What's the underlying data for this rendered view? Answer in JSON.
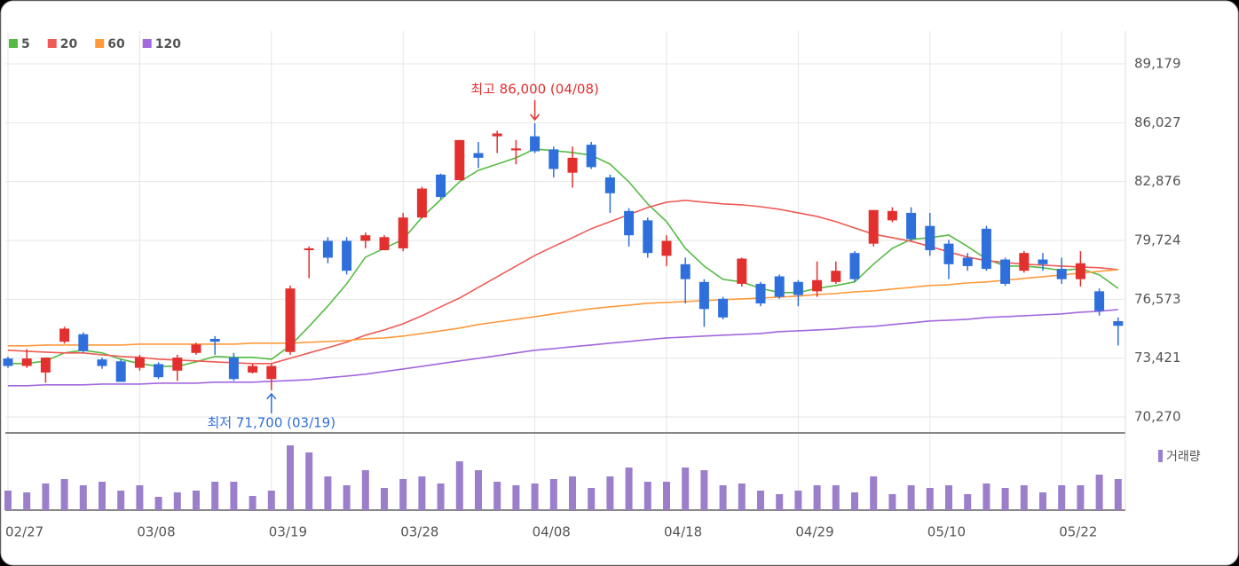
{
  "chart_data": [
    {
      "type": "candlestick",
      "categories": [
        "02/27",
        null,
        null,
        null,
        null,
        null,
        null,
        "03/08",
        null,
        null,
        null,
        null,
        null,
        null,
        "03/19",
        null,
        null,
        null,
        null,
        null,
        null,
        "03/28",
        null,
        null,
        null,
        null,
        null,
        null,
        "04/08",
        null,
        null,
        null,
        null,
        null,
        null,
        "04/18",
        null,
        null,
        null,
        null,
        null,
        null,
        "04/29",
        null,
        null,
        null,
        null,
        null,
        null,
        "05/10",
        null,
        null,
        null,
        null,
        null,
        null,
        "05/22",
        null,
        null,
        null
      ],
      "open": [
        73400,
        73000,
        72650,
        74300,
        74700,
        73350,
        73250,
        72900,
        73100,
        72750,
        73700,
        74450,
        73450,
        72650,
        72300,
        73750,
        79200,
        79700,
        79700,
        79700,
        79200,
        79300,
        80950,
        83250,
        82950,
        84400,
        85300,
        84550,
        85300,
        84600,
        83350,
        84850,
        83100,
        81300,
        80800,
        78900,
        78450,
        77500,
        76600,
        77400,
        77400,
        77800,
        77500,
        77000,
        77500,
        79050,
        79550,
        80800,
        81200,
        80500,
        79550,
        78800,
        80350,
        78700,
        78100,
        78700,
        78200,
        77650,
        77000,
        75400
      ],
      "high": [
        73500,
        73900,
        73450,
        75100,
        74800,
        73450,
        73350,
        73600,
        73200,
        73600,
        74250,
        74600,
        73700,
        73100,
        73100,
        77300,
        79400,
        79900,
        79900,
        80150,
        80000,
        81200,
        82600,
        83300,
        85100,
        85000,
        85600,
        85100,
        86000,
        84750,
        84750,
        85000,
        83250,
        81450,
        80950,
        80000,
        78800,
        77650,
        76700,
        78800,
        77500,
        77900,
        77600,
        78600,
        78600,
        79150,
        81350,
        81500,
        81500,
        81200,
        79750,
        79050,
        80500,
        78800,
        79150,
        79050,
        78800,
        79150,
        77150,
        75600
      ],
      "low": [
        72900,
        72900,
        72100,
        74200,
        73700,
        72850,
        72150,
        72750,
        72300,
        72200,
        73600,
        73600,
        72200,
        72600,
        71700,
        73600,
        77700,
        78500,
        77900,
        79300,
        79200,
        79150,
        80900,
        81950,
        82950,
        83600,
        84400,
        83800,
        84400,
        83100,
        82550,
        83550,
        81200,
        79400,
        78800,
        78350,
        76350,
        75100,
        75500,
        77250,
        76200,
        76600,
        76200,
        76700,
        77400,
        77500,
        79400,
        80700,
        79700,
        78900,
        77650,
        78100,
        78100,
        77300,
        78000,
        78100,
        77400,
        77250,
        75700,
        74100
      ],
      "close": [
        73000,
        73400,
        73450,
        75000,
        73800,
        73000,
        72150,
        73450,
        72400,
        73450,
        74150,
        74300,
        72300,
        73000,
        73000,
        77150,
        79300,
        78800,
        78100,
        80000,
        79900,
        80950,
        82500,
        82050,
        85100,
        84150,
        85450,
        84650,
        84500,
        83550,
        84150,
        83650,
        82250,
        80000,
        79050,
        79700,
        77650,
        76050,
        75600,
        78750,
        76350,
        76700,
        76800,
        77600,
        78100,
        77650,
        81350,
        81300,
        79800,
        79200,
        78450,
        78350,
        78200,
        77400,
        79050,
        78450,
        77650,
        78500,
        75950,
        75150
      ],
      "up_color": "#e2302f",
      "down_color": "#2f6fdc",
      "series": [
        {
          "name": "5",
          "color": "#55bb44",
          "values": [
            73130,
            73130,
            73270,
            73700,
            73840,
            73700,
            73360,
            73130,
            72980,
            72980,
            73220,
            73510,
            73460,
            73460,
            73360,
            74080,
            75120,
            76210,
            77400,
            78830,
            79300,
            79780,
            80960,
            81910,
            82860,
            83480,
            83810,
            84150,
            84620,
            84530,
            84430,
            84290,
            83810,
            82860,
            81680,
            80730,
            79300,
            78350,
            77640,
            77500,
            77160,
            76930,
            76930,
            77160,
            77310,
            77500,
            78450,
            79300,
            79780,
            79870,
            80010,
            79400,
            78730,
            78350,
            78350,
            78260,
            78110,
            78210,
            77880,
            77160
          ]
        },
        {
          "name": "20",
          "color": "#ee5b55",
          "values": [
            73840,
            73790,
            73740,
            73700,
            73700,
            73600,
            73510,
            73460,
            73360,
            73320,
            73270,
            73220,
            73170,
            73130,
            73130,
            73410,
            73700,
            73980,
            74270,
            74650,
            74930,
            75260,
            75690,
            76170,
            76640,
            77210,
            77780,
            78350,
            78920,
            79400,
            79870,
            80350,
            80730,
            81110,
            81490,
            81770,
            81870,
            81770,
            81680,
            81630,
            81530,
            81390,
            81200,
            81010,
            80730,
            80390,
            80060,
            79870,
            79680,
            79400,
            79110,
            78830,
            78640,
            78540,
            78450,
            78400,
            78350,
            78300,
            78260,
            78160
          ]
        },
        {
          "name": "60",
          "color": "#ff9a3c",
          "values": [
            74080,
            74080,
            74120,
            74120,
            74120,
            74120,
            74120,
            74170,
            74170,
            74170,
            74170,
            74170,
            74170,
            74220,
            74220,
            74220,
            74270,
            74310,
            74360,
            74460,
            74500,
            74600,
            74740,
            74880,
            75030,
            75220,
            75360,
            75500,
            75640,
            75790,
            75930,
            76070,
            76170,
            76260,
            76360,
            76400,
            76450,
            76500,
            76550,
            76590,
            76640,
            76690,
            76740,
            76830,
            76880,
            76970,
            77020,
            77120,
            77210,
            77310,
            77350,
            77450,
            77500,
            77590,
            77690,
            77780,
            77880,
            77970,
            78070,
            78160
          ]
        },
        {
          "name": "120",
          "color": "#a268dd",
          "values": [
            71940,
            71940,
            71990,
            71990,
            71990,
            72030,
            72030,
            72030,
            72080,
            72080,
            72080,
            72130,
            72130,
            72130,
            72180,
            72220,
            72270,
            72370,
            72460,
            72560,
            72700,
            72840,
            72980,
            73130,
            73270,
            73410,
            73550,
            73700,
            73840,
            73930,
            74030,
            74120,
            74220,
            74310,
            74410,
            74500,
            74550,
            74600,
            74650,
            74690,
            74740,
            74840,
            74880,
            74930,
            74980,
            75070,
            75120,
            75220,
            75310,
            75410,
            75450,
            75500,
            75600,
            75640,
            75690,
            75740,
            75790,
            75880,
            75930,
            76020
          ]
        }
      ],
      "ylim": [
        69462,
        90937
      ],
      "yticks": [
        {
          "value": 70270,
          "label": "70,270"
        },
        {
          "value": 73421,
          "label": "73,421"
        },
        {
          "value": 76573,
          "label": "76,573"
        },
        {
          "value": 79724,
          "label": "79,724"
        },
        {
          "value": 82876,
          "label": "82,876"
        },
        {
          "value": 86027,
          "label": "86,027"
        },
        {
          "value": 89179,
          "label": "89,179"
        }
      ],
      "grid": true,
      "annotations": {
        "high": "최고 86,000 (04/08)",
        "low": "최저 71,700 (03/19)"
      }
    },
    {
      "type": "bar",
      "name": "거래량",
      "color": "#9b7fcb",
      "values": [
        22,
        20,
        30,
        35,
        28,
        32,
        22,
        28,
        15,
        20,
        22,
        32,
        32,
        16,
        22,
        73,
        65,
        38,
        28,
        45,
        25,
        35,
        38,
        30,
        55,
        45,
        32,
        28,
        30,
        35,
        38,
        25,
        38,
        48,
        32,
        32,
        48,
        45,
        28,
        30,
        22,
        18,
        22,
        28,
        28,
        20,
        38,
        18,
        28,
        25,
        28,
        18,
        30,
        25,
        28,
        20,
        28,
        28,
        40,
        35
      ],
      "ylim": [
        0,
        85
      ]
    }
  ]
}
